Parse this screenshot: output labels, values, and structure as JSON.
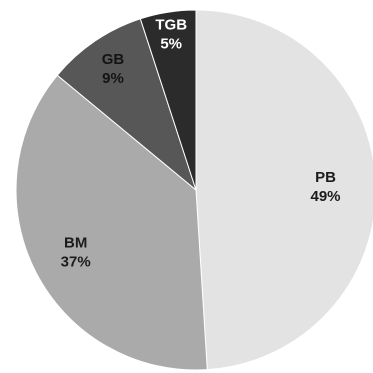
{
  "chart_data": {
    "type": "pie",
    "title": "",
    "slices": [
      {
        "label": "PB",
        "value": 49,
        "display": "49%",
        "color": "#e3e3e3",
        "text_color": "#1c1c1c"
      },
      {
        "label": "BM",
        "value": 37,
        "display": "37%",
        "color": "#aaaaaa",
        "text_color": "#1c1c1c"
      },
      {
        "label": "GB",
        "value": 9,
        "display": "9%",
        "color": "#575757",
        "text_color": "#141414"
      },
      {
        "label": "TGB",
        "value": 5,
        "display": "5%",
        "color": "#2b2b2b",
        "text_color": "#ffffff"
      }
    ],
    "start_angle_deg": 0,
    "direction": "clockwise",
    "legend": "none",
    "labels": "inside"
  }
}
